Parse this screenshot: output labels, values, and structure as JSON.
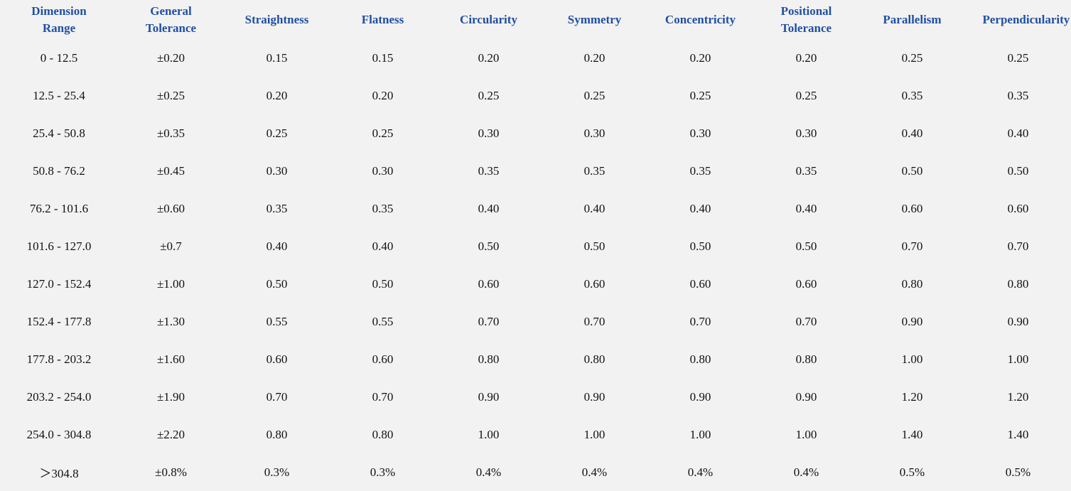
{
  "table": {
    "header": [
      "Dimension Range",
      "General Tolerance",
      "Straightness",
      "Flatness",
      "Circularity",
      "Symmetry",
      "Concentricity",
      "Positional Tolerance",
      "Parallelism",
      "Perpendicularity"
    ],
    "rows": [
      [
        "0 - 12.5",
        "±0.20",
        "0.15",
        "0.15",
        "0.20",
        "0.20",
        "0.20",
        "0.20",
        "0.25",
        "0.25"
      ],
      [
        "12.5 - 25.4",
        "±0.25",
        "0.20",
        "0.20",
        "0.25",
        "0.25",
        "0.25",
        "0.25",
        "0.35",
        "0.35"
      ],
      [
        "25.4 - 50.8",
        "±0.35",
        "0.25",
        "0.25",
        "0.30",
        "0.30",
        "0.30",
        "0.30",
        "0.40",
        "0.40"
      ],
      [
        "50.8 - 76.2",
        "±0.45",
        "0.30",
        "0.30",
        "0.35",
        "0.35",
        "0.35",
        "0.35",
        "0.50",
        "0.50"
      ],
      [
        "76.2 - 101.6",
        "±0.60",
        "0.35",
        "0.35",
        "0.40",
        "0.40",
        "0.40",
        "0.40",
        "0.60",
        "0.60"
      ],
      [
        "101.6 - 127.0",
        "±0.7",
        "0.40",
        "0.40",
        "0.50",
        "0.50",
        "0.50",
        "0.50",
        "0.70",
        "0.70"
      ],
      [
        "127.0 - 152.4",
        "±1.00",
        "0.50",
        "0.50",
        "0.60",
        "0.60",
        "0.60",
        "0.60",
        "0.80",
        "0.80"
      ],
      [
        "152.4 - 177.8",
        "±1.30",
        "0.55",
        "0.55",
        "0.70",
        "0.70",
        "0.70",
        "0.70",
        "0.90",
        "0.90"
      ],
      [
        "177.8 - 203.2",
        "±1.60",
        "0.60",
        "0.60",
        "0.80",
        "0.80",
        "0.80",
        "0.80",
        "1.00",
        "1.00"
      ],
      [
        "203.2 - 254.0",
        "±1.90",
        "0.70",
        "0.70",
        "0.90",
        "0.90",
        "0.90",
        "0.90",
        "1.20",
        "1.20"
      ],
      [
        "254.0 - 304.8",
        "±2.20",
        "0.80",
        "0.80",
        "1.00",
        "1.00",
        "1.00",
        "1.00",
        "1.40",
        "1.40"
      ],
      [
        "＞304.8",
        "±0.8%",
        "0.3%",
        "0.3%",
        "0.4%",
        "0.4%",
        "0.4%",
        "0.4%",
        "0.5%",
        "0.5%"
      ]
    ]
  }
}
